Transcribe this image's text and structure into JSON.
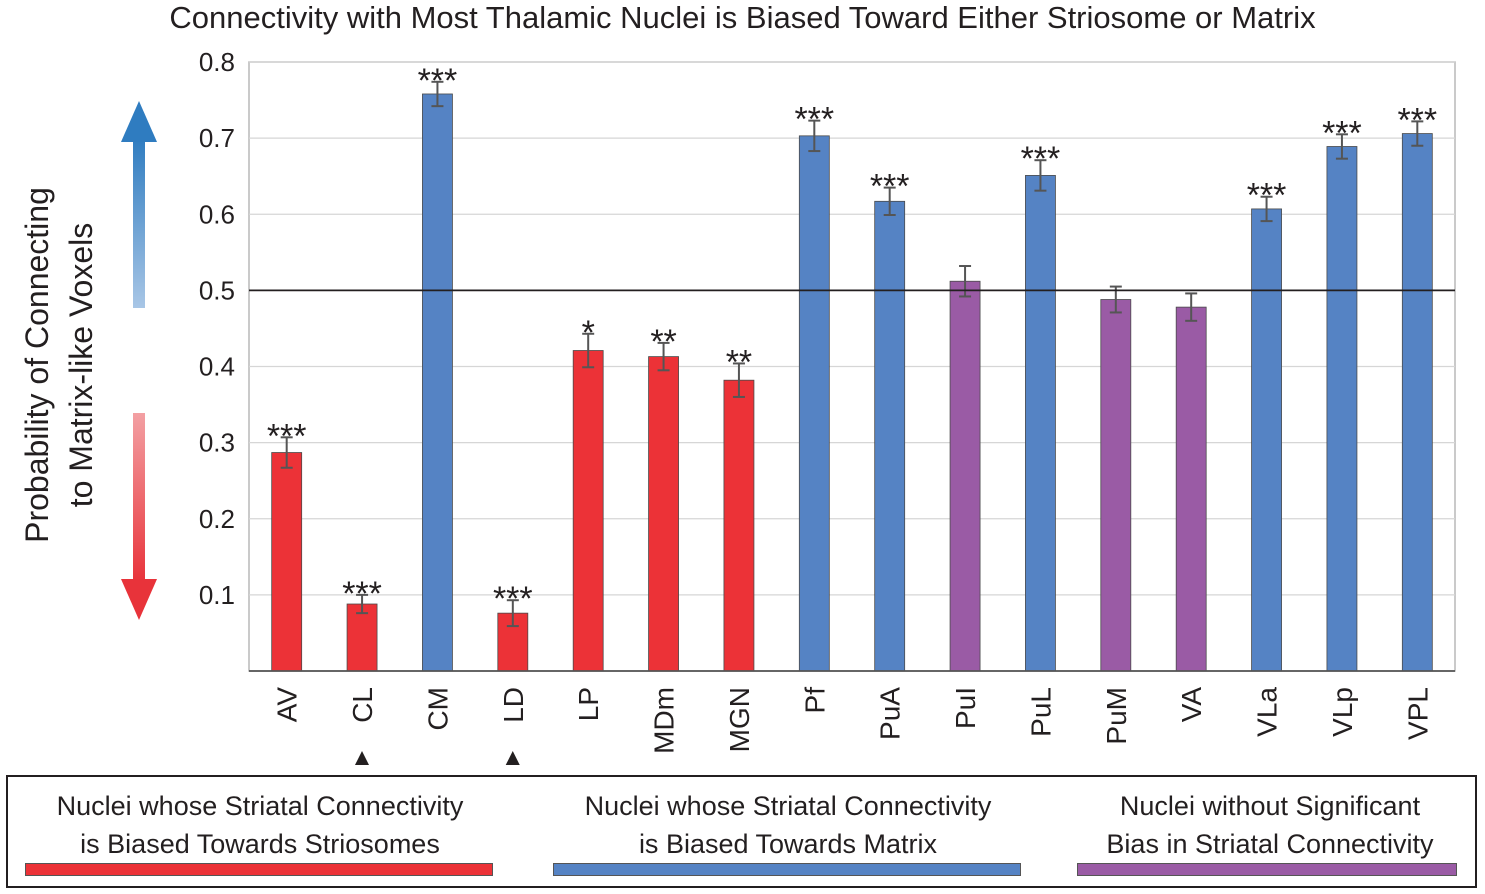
{
  "chart_data": {
    "type": "bar",
    "title": "Connectivity with Most Thalamic Nuclei is Biased Toward Either Striosome or Matrix",
    "ylabel_line1": "Probability of Connecting",
    "ylabel_line2": "to Matrix-like Voxels",
    "ylim": [
      0,
      0.8
    ],
    "yticks": [
      "0.1",
      "0.2",
      "0.3",
      "0.4",
      "0.5",
      "0.6",
      "0.7",
      "0.8"
    ],
    "reference_line": 0.5,
    "grid": true,
    "categories": [
      "AV",
      "CL",
      "CM",
      "LD",
      "LP",
      "MDm",
      "MGN",
      "Pf",
      "PuA",
      "PuI",
      "PuL",
      "PuM",
      "VA",
      "VLa",
      "VLp",
      "VPL"
    ],
    "values": [
      0.287,
      0.088,
      0.758,
      0.076,
      0.421,
      0.413,
      0.382,
      0.703,
      0.617,
      0.512,
      0.651,
      0.488,
      0.478,
      0.607,
      0.689,
      0.706
    ],
    "errors": [
      0.02,
      0.012,
      0.016,
      0.017,
      0.022,
      0.018,
      0.022,
      0.02,
      0.018,
      0.02,
      0.02,
      0.017,
      0.018,
      0.016,
      0.016,
      0.016
    ],
    "groups": [
      "striosome",
      "striosome",
      "matrix",
      "striosome",
      "striosome",
      "striosome",
      "striosome",
      "matrix",
      "matrix",
      "none",
      "matrix",
      "none",
      "none",
      "matrix",
      "matrix",
      "matrix"
    ],
    "significance": [
      "***",
      "***",
      "***",
      "***",
      "*",
      "**",
      "**",
      "***",
      "***",
      "",
      "***",
      "",
      "",
      "***",
      "***",
      "***"
    ],
    "markers": [
      "",
      "▲",
      "",
      "▲",
      "",
      "",
      "",
      "",
      "",
      "",
      "",
      "",
      "",
      "",
      "",
      ""
    ],
    "colors": {
      "striosome": "#ec3237",
      "matrix": "#5583c4",
      "none": "#9a5ba5",
      "arrow_up": "#2f7cc0",
      "arrow_down": "#e8333a"
    }
  },
  "legend": {
    "items": [
      {
        "group": "striosome",
        "line1": "Nuclei whose Striatal Connectivity",
        "line2": "is Biased Towards Striosomes"
      },
      {
        "group": "matrix",
        "line1": "Nuclei whose Striatal Connectivity",
        "line2": "is Biased Towards Matrix"
      },
      {
        "group": "none",
        "line1": "Nuclei without Significant",
        "line2": "Bias in Striatal Connectivity"
      }
    ]
  }
}
